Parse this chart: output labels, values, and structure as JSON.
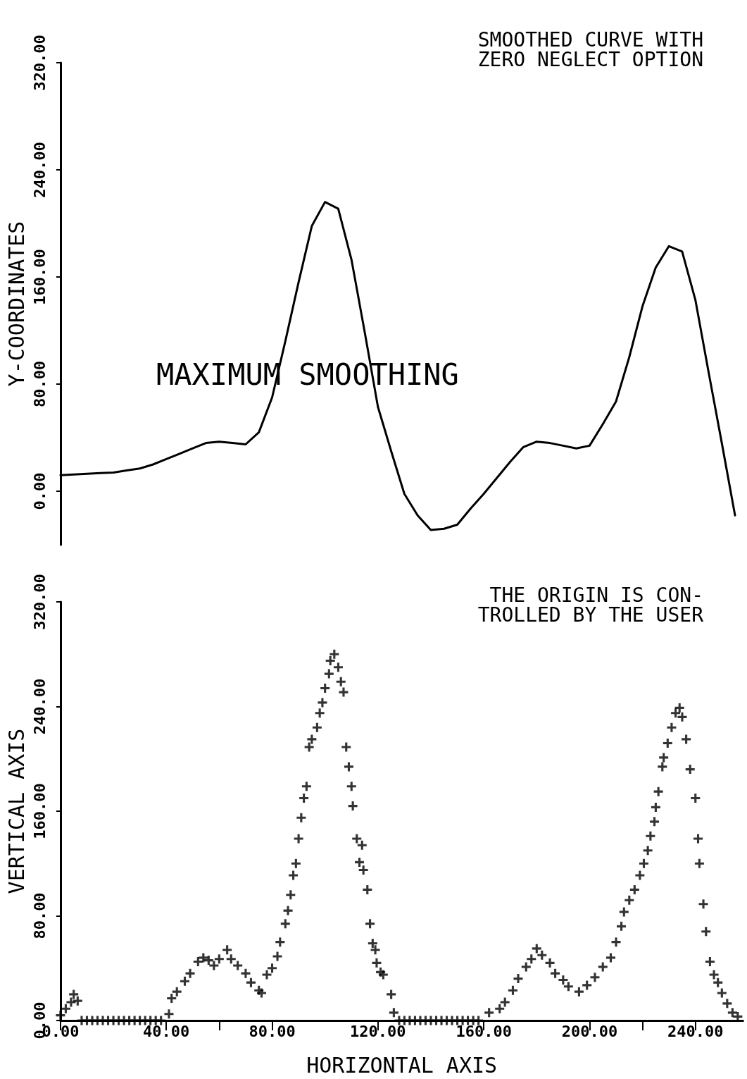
{
  "chart_data": [
    {
      "type": "line",
      "ylabel": "Y-COORDINATES",
      "tick_labels": "y",
      "marker": "none",
      "line_style": "solid",
      "annotations": [
        "SMOOTHED CURVE WITH\nZERO NEGLECT OPTION",
        "MAXIMUM SMOOTHING"
      ],
      "categories": [
        null,
        null,
        null,
        null,
        null,
        null,
        null,
        null,
        null,
        null,
        null,
        null,
        null,
        null,
        null,
        null,
        null,
        null,
        null,
        null,
        null,
        null,
        null,
        null,
        null,
        null,
        null,
        null,
        null,
        null,
        null,
        null,
        null,
        null,
        null,
        null,
        null,
        null,
        null,
        null,
        null,
        null,
        null,
        null,
        null,
        null,
        null,
        null,
        null,
        null,
        null,
        null
      ],
      "series": [
        {
          "color": "#000000",
          "values": [
            12,
            12.5,
            13,
            13.5,
            14,
            15.5,
            17,
            20,
            24,
            28,
            32,
            36,
            37,
            36,
            35,
            44,
            70,
            112,
            156,
            198,
            216,
            211,
            173,
            119,
            63,
            30,
            -2,
            -18,
            -29,
            -28,
            -25,
            -13,
            -2,
            10,
            22,
            33,
            37,
            36,
            34,
            32,
            34,
            50,
            67,
            100,
            138,
            167,
            183,
            179,
            143,
            89,
            36,
            -18
          ]
        }
      ],
      "ylim": [
        -40,
        320
      ],
      "yticks": [
        {
          "value": 0,
          "label": "0.00"
        },
        {
          "value": 80,
          "label": "80.00"
        },
        {
          "value": 160,
          "label": "160.00"
        },
        {
          "value": 240,
          "label": "240.00"
        },
        {
          "value": 320,
          "label": "320.00"
        }
      ]
    },
    {
      "type": "scatter",
      "xlabel": "HORIZONTAL AXIS",
      "ylabel": "VERTICAL AXIS",
      "marker": "cross",
      "annotations": [
        "THE ORIGIN IS CON-\nTROLLED BY THE USER"
      ],
      "x": [
        0,
        2,
        4,
        5,
        6.5,
        8,
        10,
        12,
        14,
        16,
        18,
        20,
        22,
        24,
        26,
        28,
        30,
        32,
        34,
        36,
        38,
        41,
        42,
        44,
        47,
        49,
        52,
        54,
        56,
        58,
        60,
        63,
        64.5,
        67,
        70,
        72,
        75,
        76,
        78,
        80,
        82,
        83,
        85,
        86,
        87,
        88,
        89,
        90,
        91,
        92,
        93,
        94,
        95,
        97,
        98,
        99,
        100,
        101.5,
        102,
        103.5,
        105,
        106,
        107,
        108,
        109,
        110,
        110.5,
        112,
        113,
        114,
        114.5,
        116,
        117,
        118,
        119,
        119.5,
        121,
        122,
        125,
        126,
        128,
        130,
        132,
        134,
        136,
        138,
        140,
        142,
        144,
        146,
        148,
        150,
        152,
        154,
        156,
        158,
        162,
        166,
        168,
        171,
        173,
        176,
        178,
        180,
        182,
        185,
        187,
        190,
        192,
        196,
        199,
        202,
        205,
        208,
        210,
        212,
        213,
        215,
        217,
        219,
        220.5,
        222,
        223,
        224.5,
        225,
        226,
        227.5,
        228,
        229.5,
        231,
        232.5,
        234,
        235,
        236.5,
        238,
        240,
        241,
        241.5,
        243,
        244,
        245.5,
        247,
        248.5,
        250,
        252,
        254,
        256
      ],
      "series": [
        {
          "color": "#000000",
          "values": [
            4,
            9,
            14,
            20,
            15,
            0,
            0,
            0,
            0,
            0,
            0,
            0,
            0,
            0,
            0,
            0,
            0,
            0,
            0,
            0,
            0,
            5,
            17,
            22,
            30,
            36,
            45,
            48,
            46,
            42,
            47,
            54,
            47,
            42,
            36,
            29,
            23,
            21,
            35,
            40,
            49,
            60,
            74,
            84,
            96,
            111,
            120,
            139,
            155,
            170,
            179,
            209,
            215,
            224,
            235,
            243,
            254,
            265,
            275,
            280,
            270,
            259,
            251,
            209,
            194,
            179,
            164,
            139,
            121,
            134,
            115,
            100,
            74,
            59,
            54,
            44,
            37,
            35,
            20,
            6,
            0,
            0,
            0,
            0,
            0,
            0,
            0,
            0,
            0,
            0,
            0,
            0,
            0,
            0,
            0,
            0,
            6,
            9,
            14,
            23,
            32,
            41,
            47,
            55,
            50,
            44,
            36,
            31,
            26,
            22,
            27,
            33,
            41,
            48,
            60,
            72,
            83,
            92,
            100,
            111,
            120,
            130,
            141,
            152,
            163,
            175,
            194,
            201,
            212,
            224,
            235,
            239,
            232,
            215,
            192,
            170,
            139,
            120,
            89,
            68,
            45,
            35,
            29,
            21,
            13,
            6,
            3
          ]
        }
      ],
      "xlim": [
        0,
        258
      ],
      "ylim": [
        0,
        320
      ],
      "xticks": [
        {
          "value": 0,
          "label": "0.00"
        },
        {
          "value": 40,
          "label": "40.00"
        },
        {
          "value": 60,
          "label": null
        },
        {
          "value": 80,
          "label": "80.00"
        },
        {
          "value": 120,
          "label": "120.00"
        },
        {
          "value": 160,
          "label": "160.00"
        },
        {
          "value": 200,
          "label": "200.00"
        },
        {
          "value": 220,
          "label": null
        },
        {
          "value": 240,
          "label": "240.00"
        }
      ],
      "yticks": [
        {
          "value": 0,
          "label": "0.00"
        },
        {
          "value": 80,
          "label": "80.00"
        },
        {
          "value": 160,
          "label": "160.00"
        },
        {
          "value": 240,
          "label": "240.00"
        },
        {
          "value": 320,
          "label": "320.00"
        }
      ]
    }
  ]
}
